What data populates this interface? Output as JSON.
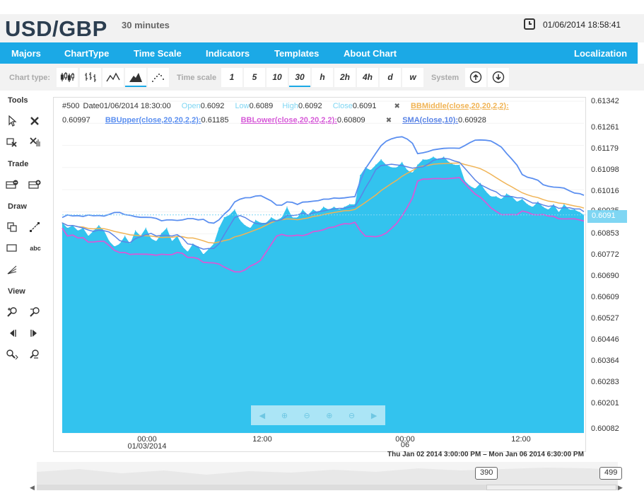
{
  "header": {
    "pair": "USD/GBP",
    "interval": "30 minutes",
    "datetime": "01/06/2014 18:58:41"
  },
  "menu": {
    "items": [
      "Majors",
      "ChartType",
      "Time Scale",
      "Indicators",
      "Templates",
      "About Chart"
    ],
    "right": "Localization"
  },
  "toolbar": {
    "chart_type_label": "Chart type:",
    "time_scale_label": "Time scale",
    "time_scales": [
      "1",
      "5",
      "10",
      "30",
      "h",
      "2h",
      "4h",
      "d",
      "w"
    ],
    "active_time_scale": "30",
    "active_chart_type": "mountain",
    "system_label": "System"
  },
  "sidebar": {
    "tools": "Tools",
    "trade": "Trade",
    "draw": "Draw",
    "view": "View",
    "text_tool": "abc"
  },
  "legend": {
    "bar_no": "#500",
    "date_label": "Date",
    "date_value": "01/06/2014 18:30:00",
    "open_label": "Open",
    "open_value": "0.6092",
    "low_label": "Low",
    "low_value": "0.6089",
    "high_label": "High",
    "high_value": "0.6092",
    "close_label": "Close",
    "close_value": "0.6091",
    "close_mark": "✖",
    "bbmiddle_label": "BBMiddle(close,20,20,2,2):",
    "bbmiddle_value": "0.60997",
    "bbupper_label": "BBUpper(close,20,20,2,2):",
    "bbupper_value": "0.61185",
    "bblower_label": "BBLower(close,20,20,2,2):",
    "bblower_value": "0.60809",
    "sma_label": "SMA(close,10):",
    "sma_value": "0.60928"
  },
  "yaxis": {
    "ticks": [
      "0.61342",
      "0.61261",
      "0.61179",
      "0.61098",
      "0.61016",
      "0.60935",
      "0.60853",
      "0.60772",
      "0.60690",
      "0.60609",
      "0.60527",
      "0.60446",
      "0.60364",
      "0.60283",
      "0.60201",
      "0.60082"
    ],
    "current_price": "0.6091"
  },
  "xaxis": {
    "labels": [
      {
        "time": "00:00",
        "date": "01/03/2014"
      },
      {
        "time": "12:00",
        "date": ""
      },
      {
        "time": "00:00",
        "date": "06"
      },
      {
        "time": "12:00",
        "date": ""
      }
    ],
    "range": "Thu Jan 02 2014 3:00:00 PM – Mon Jan 06 2014 6:30:00 PM"
  },
  "navigator": {
    "start": "390",
    "end": "499"
  },
  "colors": {
    "accent": "#1ba9e6",
    "area": "#33c3ee",
    "bbupper": "#5b8ff0",
    "bbmiddle": "#f0b354",
    "bblower": "#d65ad8",
    "sma": "#5a84e6"
  },
  "chart_data": {
    "type": "area",
    "ylim": [
      0.60082,
      0.61342
    ],
    "x": [
      0,
      5,
      10,
      15,
      20,
      25,
      30,
      35,
      40,
      45,
      50,
      55,
      60,
      65,
      70,
      75,
      80,
      85,
      90,
      95,
      100,
      105,
      110,
      115,
      120,
      125,
      130,
      135,
      140,
      145,
      150,
      155,
      160,
      165,
      170,
      175,
      180,
      185,
      190,
      195,
      200,
      205,
      210,
      215,
      220,
      225,
      230,
      235,
      240,
      245,
      250,
      255,
      260,
      265,
      270,
      275,
      280,
      285,
      290,
      295,
      300,
      305,
      310,
      315,
      320,
      325,
      330,
      335,
      340,
      345,
      350,
      355,
      360,
      365,
      370,
      375,
      380,
      385,
      390,
      395,
      400,
      405,
      410,
      415,
      420,
      425,
      430,
      435,
      440,
      445,
      450,
      455,
      460,
      465,
      470,
      475,
      480,
      485,
      490,
      495,
      499
    ],
    "series": [
      {
        "name": "Close",
        "values": [
          0.6088,
          0.6086,
          0.6087,
          0.6085,
          0.6086,
          0.6083,
          0.6085,
          0.6087,
          0.6085,
          0.6081,
          0.6079,
          0.608,
          0.6083,
          0.608,
          0.6085,
          0.6083,
          0.6086,
          0.6082,
          0.6081,
          0.6084,
          0.6086,
          0.6081,
          0.6083,
          0.6079,
          0.6077,
          0.608,
          0.6079,
          0.6076,
          0.6078,
          0.608,
          0.6086,
          0.609,
          0.6091,
          0.6093,
          0.6089,
          0.6087,
          0.6086,
          0.6089,
          0.6088,
          0.6088,
          0.609,
          0.6089,
          0.609,
          0.6094,
          0.609,
          0.609,
          0.6093,
          0.6091,
          0.6093,
          0.6092,
          0.6094,
          0.6093,
          0.6094,
          0.6093,
          0.6094,
          0.6095,
          0.6095,
          0.6106,
          0.6109,
          0.6108,
          0.611,
          0.6112,
          0.611,
          0.6109,
          0.6109,
          0.6111,
          0.6108,
          0.6107,
          0.611,
          0.6112,
          0.6112,
          0.6113,
          0.6112,
          0.6113,
          0.6111,
          0.611,
          0.611,
          0.6104,
          0.6102,
          0.6101,
          0.6103,
          0.61,
          0.6098,
          0.6098,
          0.6097,
          0.6099,
          0.6098,
          0.6096,
          0.6097,
          0.6095,
          0.6094,
          0.6096,
          0.6094,
          0.6093,
          0.6095,
          0.6092,
          0.6095,
          0.6093,
          0.6093,
          0.6092,
          0.6091
        ]
      }
    ]
  }
}
